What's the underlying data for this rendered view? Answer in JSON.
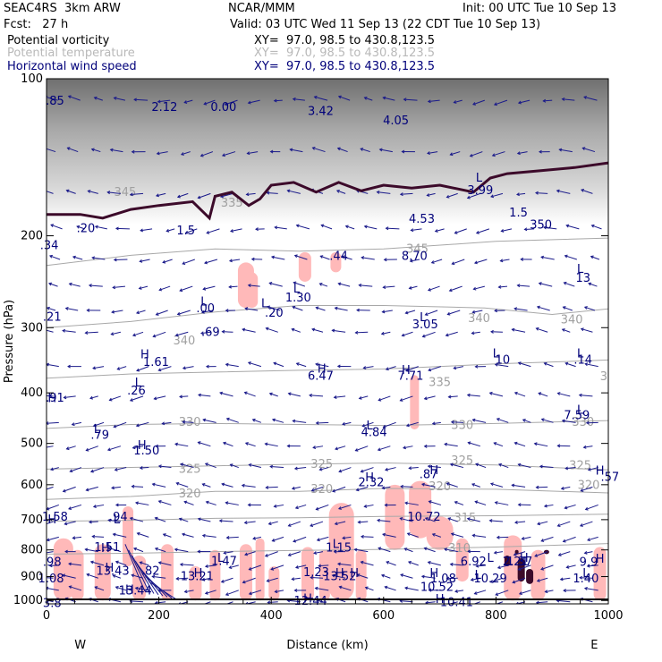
{
  "header": {
    "model": "SEAC4RS  3km ARW",
    "center": "NCAR/MMM",
    "init": "Init: 00 UTC Tue 10 Sep 13",
    "fcst": "Fcst:   27 h",
    "valid": "Valid: 03 UTC Wed 11 Sep 13 (22 CDT Tue 10 Sep 13)",
    "fields": [
      {
        "name": "Potential vorticity",
        "xy": "XY=  97.0, 98.5 to 430.8,123.5",
        "color": "#000000"
      },
      {
        "name": "Potential temperature",
        "xy": "XY=  97.0, 98.5 to 430.8,123.5",
        "color": "#b4b4b4"
      },
      {
        "name": "Horizontal wind speed",
        "xy": "XY=  97.0, 98.5 to 430.8,123.5",
        "color": "#00007a"
      }
    ]
  },
  "chart_data": {
    "type": "cross-section",
    "xlabel": "Distance (km)",
    "ylabel": "Pressure (hPa)",
    "xlim": [
      0,
      1000
    ],
    "ylim": [
      100,
      1015
    ],
    "y_scale": "log",
    "x_ticks": [
      "0",
      "200",
      "400",
      "600",
      "800",
      "1000"
    ],
    "x_tick_values": [
      0,
      200,
      400,
      600,
      800,
      1000
    ],
    "y_ticks": [
      "100",
      "200",
      "300",
      "400",
      "500",
      "600",
      "700",
      "800",
      "900",
      "1000"
    ],
    "y_tick_values": [
      100,
      200,
      300,
      400,
      500,
      600,
      700,
      800,
      900,
      1000
    ],
    "left_endpoint": "W",
    "right_endpoint": "E",
    "theta_isentropes": [
      {
        "label": "345",
        "points": [
          [
            0,
            228
          ],
          [
            150,
            218
          ],
          [
            300,
            212
          ],
          [
            450,
            214
          ],
          [
            600,
            212
          ],
          [
            800,
            205
          ],
          [
            1000,
            202
          ]
        ]
      },
      {
        "label": "340",
        "points": [
          [
            0,
            300
          ],
          [
            150,
            292
          ],
          [
            300,
            280
          ],
          [
            450,
            272
          ],
          [
            600,
            272
          ],
          [
            780,
            275
          ],
          [
            900,
            283
          ],
          [
            1000,
            276
          ]
        ]
      },
      {
        "label": "335",
        "points": [
          [
            0,
            375
          ],
          [
            150,
            368
          ],
          [
            300,
            365
          ],
          [
            450,
            362
          ],
          [
            600,
            360
          ],
          [
            800,
            352
          ],
          [
            1000,
            346
          ]
        ]
      },
      {
        "label": "330",
        "points": [
          [
            0,
            468
          ],
          [
            150,
            460
          ],
          [
            300,
            458
          ],
          [
            450,
            460
          ],
          [
            600,
            462
          ],
          [
            800,
            458
          ],
          [
            1000,
            452
          ]
        ]
      },
      {
        "label": "325",
        "points": [
          [
            0,
            560
          ],
          [
            150,
            556
          ],
          [
            300,
            552
          ],
          [
            450,
            548
          ],
          [
            600,
            545
          ],
          [
            800,
            550
          ],
          [
            1000,
            562
          ]
        ]
      },
      {
        "label": "320",
        "points": [
          [
            0,
            640
          ],
          [
            150,
            632
          ],
          [
            300,
            618
          ],
          [
            450,
            618
          ],
          [
            600,
            610
          ],
          [
            800,
            612
          ],
          [
            1000,
            622
          ]
        ]
      },
      {
        "label": "315",
        "points": [
          [
            0,
            705
          ],
          [
            150,
            702
          ],
          [
            300,
            696
          ],
          [
            450,
            694
          ],
          [
            600,
            690
          ],
          [
            800,
            688
          ],
          [
            1000,
            683
          ]
        ]
      },
      {
        "label": "310",
        "points": [
          [
            0,
            815
          ],
          [
            150,
            812
          ],
          [
            300,
            806
          ],
          [
            450,
            802
          ],
          [
            600,
            798
          ],
          [
            800,
            790
          ],
          [
            1000,
            778
          ]
        ]
      }
    ],
    "theta_labels": [
      {
        "text": "345",
        "x": 140,
        "p": 165
      },
      {
        "text": "335",
        "x": 330,
        "p": 173
      },
      {
        "text": "345",
        "x": 660,
        "p": 212
      },
      {
        "text": "340",
        "x": 245,
        "p": 318
      },
      {
        "text": "340",
        "x": 770,
        "p": 288
      },
      {
        "text": "340",
        "x": 935,
        "p": 290
      },
      {
        "text": "335",
        "x": 700,
        "p": 382
      },
      {
        "text": "335",
        "x": 1005,
        "p": 372
      },
      {
        "text": "330",
        "x": 255,
        "p": 455
      },
      {
        "text": "330",
        "x": 740,
        "p": 462
      },
      {
        "text": "330",
        "x": 955,
        "p": 455
      },
      {
        "text": "325",
        "x": 255,
        "p": 560
      },
      {
        "text": "325",
        "x": 490,
        "p": 548
      },
      {
        "text": "325",
        "x": 740,
        "p": 540
      },
      {
        "text": "325",
        "x": 950,
        "p": 552
      },
      {
        "text": "320",
        "x": 255,
        "p": 625
      },
      {
        "text": "320",
        "x": 490,
        "p": 612
      },
      {
        "text": "320",
        "x": 700,
        "p": 605
      },
      {
        "text": "320",
        "x": 965,
        "p": 602
      },
      {
        "text": "315",
        "x": 745,
        "p": 695
      },
      {
        "text": "310",
        "x": 735,
        "p": 795
      }
    ],
    "pv_contour_1p5": [
      [
        0,
        182
      ],
      [
        60,
        182
      ],
      [
        100,
        185
      ],
      [
        150,
        178
      ],
      [
        200,
        175
      ],
      [
        260,
        172
      ],
      [
        290,
        185
      ],
      [
        300,
        168
      ],
      [
        330,
        165
      ],
      [
        360,
        175
      ],
      [
        380,
        170
      ],
      [
        400,
        160
      ],
      [
        440,
        158
      ],
      [
        480,
        165
      ],
      [
        520,
        158
      ],
      [
        560,
        164
      ],
      [
        600,
        160
      ],
      [
        650,
        162
      ],
      [
        700,
        160
      ],
      [
        760,
        165
      ],
      [
        790,
        155
      ],
      [
        820,
        152
      ],
      [
        880,
        150
      ],
      [
        940,
        148
      ],
      [
        1000,
        145
      ]
    ],
    "wind_labels": [
      {
        "kind": "H",
        "text": "13.43",
        "x": 118,
        "p": 875
      },
      {
        "kind": "H",
        "text": "13.44",
        "x": 158,
        "p": 955
      },
      {
        "kind": "H",
        "text": "13.21",
        "x": 268,
        "p": 897
      },
      {
        "kind": "H",
        "text": "13.52",
        "x": 522,
        "p": 897
      },
      {
        "kind": "H",
        "text": "10.52",
        "x": 695,
        "p": 940
      },
      {
        "kind": "H",
        "text": "10.72",
        "x": 672,
        "p": 690
      },
      {
        "kind": "H",
        "text": "12.44",
        "x": 470,
        "p": 1000
      },
      {
        "kind": "L",
        "text": "6.92",
        "x": 760,
        "p": 840
      },
      {
        "kind": "H",
        "text": "1.37",
        "x": 842,
        "p": 840
      },
      {
        "kind": "L",
        "text": "1.47",
        "x": 316,
        "p": 838
      },
      {
        "kind": "L",
        "text": "1.15",
        "x": 520,
        "p": 790
      },
      {
        "kind": "H",
        "text": "7.71",
        "x": 648,
        "p": 370
      },
      {
        "kind": "H",
        "text": "6.47",
        "x": 488,
        "p": 370
      },
      {
        "kind": "L",
        "text": "4.84",
        "x": 583,
        "p": 475
      },
      {
        "kind": "H",
        "text": "2.32",
        "x": 578,
        "p": 592
      },
      {
        "kind": "L",
        "text": "1.30",
        "x": 448,
        "p": 262
      },
      {
        "kind": "L",
        "text": "3.05",
        "x": 674,
        "p": 295
      },
      {
        "kind": "L",
        "text": "3.99",
        "x": 772,
        "p": 163
      },
      {
        "kind": "L",
        "text": "7.59",
        "x": 944,
        "p": 440
      },
      {
        "kind": "L",
        "text": "1.61",
        "x": 195,
        "p": 348
      },
      {
        "kind": "H",
        "text": "1.50",
        "x": 178,
        "p": 515
      },
      {
        "kind": "H",
        "text": "1.51",
        "x": 108,
        "p": 788
      }
    ],
    "wind_numeric_labels": [
      {
        "text": "1.58",
        "x": 15,
        "p": 690
      },
      {
        "text": ".94",
        "x": 128,
        "p": 690
      },
      {
        "text": ".98",
        "x": 10,
        "p": 842
      },
      {
        "text": "1.08",
        "x": 8,
        "p": 905
      },
      {
        "text": ".82",
        "x": 185,
        "p": 876
      },
      {
        "text": "1.23",
        "x": 480,
        "p": 880
      },
      {
        "text": "1.08",
        "x": 706,
        "p": 905
      },
      {
        "text": "10.29",
        "x": 790,
        "p": 905
      },
      {
        "text": "2.21",
        "x": 835,
        "p": 840
      },
      {
        "text": "9.9",
        "x": 965,
        "p": 842
      },
      {
        "text": "1.40",
        "x": 960,
        "p": 905
      },
      {
        "text": ".79",
        "x": 95,
        "p": 480
      },
      {
        "text": ".26",
        "x": 160,
        "p": 395
      },
      {
        "text": ".91",
        "x": 15,
        "p": 408
      },
      {
        "text": ".69",
        "x": 292,
        "p": 305
      },
      {
        "text": ".00",
        "x": 283,
        "p": 275
      },
      {
        "text": ".20",
        "x": 405,
        "p": 280
      },
      {
        "text": "10",
        "x": 812,
        "p": 345
      },
      {
        "text": ".14",
        "x": 955,
        "p": 345
      },
      {
        "text": ".87",
        "x": 680,
        "p": 572
      },
      {
        "text": ".57",
        "x": 1003,
        "p": 578
      },
      {
        "text": "13",
        "x": 955,
        "p": 240
      },
      {
        "text": "8.70",
        "x": 655,
        "p": 218
      },
      {
        "text": ".44",
        "x": 520,
        "p": 218
      },
      {
        "text": "4.53",
        "x": 668,
        "p": 185
      },
      {
        "text": "4.05",
        "x": 622,
        "p": 120
      },
      {
        "text": "3.42",
        "x": 488,
        "p": 115
      },
      {
        "text": "2.12",
        "x": 210,
        "p": 113
      },
      {
        "text": "0.00",
        "x": 315,
        "p": 113
      },
      {
        "text": ".85",
        "x": 15,
        "p": 110
      },
      {
        "text": ".34",
        "x": 5,
        "p": 208
      },
      {
        "text": ".20",
        "x": 70,
        "p": 193
      },
      {
        "text": ".21",
        "x": 10,
        "p": 285
      },
      {
        "text": "1.5",
        "x": 248,
        "p": 195
      },
      {
        "text": "1.5",
        "x": 840,
        "p": 180
      },
      {
        "text": "350",
        "x": 880,
        "p": 190
      },
      {
        "text": "10.41",
        "x": 730,
        "p": 1005
      },
      {
        "text": "3.8",
        "x": 10,
        "p": 1010
      }
    ],
    "wind_extremum_markers": [
      {
        "kind": "H",
        "x": 10,
        "p": 410
      },
      {
        "kind": "H",
        "x": 10,
        "p": 700
      },
      {
        "kind": "L",
        "x": 125,
        "p": 700
      },
      {
        "kind": "H",
        "x": 105,
        "p": 795
      },
      {
        "kind": "H",
        "x": 112,
        "p": 866
      },
      {
        "kind": "H",
        "x": 148,
        "p": 955
      },
      {
        "kind": "H",
        "x": 270,
        "p": 887
      },
      {
        "kind": "H",
        "x": 522,
        "p": 887
      },
      {
        "kind": "H",
        "x": 548,
        "p": 887
      },
      {
        "kind": "H",
        "x": 690,
        "p": 887
      },
      {
        "kind": "H",
        "x": 700,
        "p": 995
      },
      {
        "kind": "H",
        "x": 465,
        "p": 993
      },
      {
        "kind": "L",
        "x": 310,
        "p": 830
      },
      {
        "kind": "L",
        "x": 515,
        "p": 780
      },
      {
        "kind": "L",
        "x": 790,
        "p": 830
      },
      {
        "kind": "H",
        "x": 850,
        "p": 830
      },
      {
        "kind": "L",
        "x": 768,
        "p": 895
      },
      {
        "kind": "H",
        "x": 985,
        "p": 833
      },
      {
        "kind": "L",
        "x": 960,
        "p": 888
      },
      {
        "kind": "H",
        "x": 985,
        "p": 565
      },
      {
        "kind": "H",
        "x": 690,
        "p": 564
      },
      {
        "kind": "H",
        "x": 575,
        "p": 582
      },
      {
        "kind": "H",
        "x": 170,
        "p": 505
      },
      {
        "kind": "L",
        "x": 90,
        "p": 470
      },
      {
        "kind": "L",
        "x": 575,
        "p": 463
      },
      {
        "kind": "L",
        "x": 950,
        "p": 432
      },
      {
        "kind": "H",
        "x": 640,
        "p": 362
      },
      {
        "kind": "H",
        "x": 490,
        "p": 360
      },
      {
        "kind": "L",
        "x": 163,
        "p": 383
      },
      {
        "kind": "H",
        "x": 175,
        "p": 338
      },
      {
        "kind": "L",
        "x": 800,
        "p": 337
      },
      {
        "kind": "L",
        "x": 950,
        "p": 337
      },
      {
        "kind": "L",
        "x": 670,
        "p": 287
      },
      {
        "kind": "L",
        "x": 280,
        "p": 268
      },
      {
        "kind": "L",
        "x": 388,
        "p": 270
      },
      {
        "kind": "L",
        "x": 445,
        "p": 253
      },
      {
        "kind": "L",
        "x": 950,
        "p": 232
      },
      {
        "kind": "L",
        "x": 770,
        "p": 155
      }
    ],
    "pv_high_blobs": [
      {
        "x": 30,
        "p0": 760,
        "p1": 1000,
        "w": 22
      },
      {
        "x": 55,
        "p0": 800,
        "p1": 1000,
        "w": 14
      },
      {
        "x": 100,
        "p0": 780,
        "p1": 1000,
        "w": 18
      },
      {
        "x": 145,
        "p0": 660,
        "p1": 860,
        "w": 12
      },
      {
        "x": 165,
        "p0": 820,
        "p1": 1000,
        "w": 15
      },
      {
        "x": 215,
        "p0": 780,
        "p1": 1000,
        "w": 14
      },
      {
        "x": 265,
        "p0": 860,
        "p1": 1000,
        "w": 14
      },
      {
        "x": 300,
        "p0": 800,
        "p1": 1000,
        "w": 12
      },
      {
        "x": 355,
        "p0": 780,
        "p1": 1000,
        "w": 14
      },
      {
        "x": 380,
        "p0": 760,
        "p1": 1000,
        "w": 10
      },
      {
        "x": 405,
        "p0": 860,
        "p1": 1000,
        "w": 12
      },
      {
        "x": 465,
        "p0": 790,
        "p1": 1000,
        "w": 14
      },
      {
        "x": 495,
        "p0": 800,
        "p1": 1000,
        "w": 12
      },
      {
        "x": 525,
        "p0": 650,
        "p1": 1000,
        "w": 28
      },
      {
        "x": 560,
        "p0": 800,
        "p1": 1000,
        "w": 12
      },
      {
        "x": 620,
        "p0": 600,
        "p1": 800,
        "w": 22
      },
      {
        "x": 665,
        "p0": 590,
        "p1": 760,
        "w": 25
      },
      {
        "x": 700,
        "p0": 690,
        "p1": 800,
        "w": 30
      },
      {
        "x": 740,
        "p0": 760,
        "p1": 920,
        "w": 14
      },
      {
        "x": 830,
        "p0": 750,
        "p1": 1000,
        "w": 20
      },
      {
        "x": 875,
        "p0": 800,
        "p1": 1000,
        "w": 16
      },
      {
        "x": 985,
        "p0": 790,
        "p1": 1000,
        "w": 14
      },
      {
        "x": 355,
        "p0": 225,
        "p1": 275,
        "w": 18
      },
      {
        "x": 460,
        "p0": 215,
        "p1": 245,
        "w": 14
      },
      {
        "x": 515,
        "p0": 215,
        "p1": 235,
        "w": 12
      },
      {
        "x": 365,
        "p0": 235,
        "p1": 275,
        "w": 14
      },
      {
        "x": 655,
        "p0": 370,
        "p1": 470,
        "w": 10
      }
    ],
    "pv_dark_blobs": [
      {
        "x": 820,
        "p0": 820,
        "p1": 860,
        "w": 6
      },
      {
        "x": 845,
        "p0": 830,
        "p1": 920,
        "w": 8
      },
      {
        "x": 860,
        "p0": 870,
        "p1": 930,
        "w": 8
      },
      {
        "x": 890,
        "p0": 800,
        "p1": 815,
        "w": 6
      },
      {
        "x": 837,
        "p0": 800,
        "p1": 815,
        "w": 4
      }
    ],
    "strat_band_top": 100,
    "strat_band_bottom": 190
  }
}
